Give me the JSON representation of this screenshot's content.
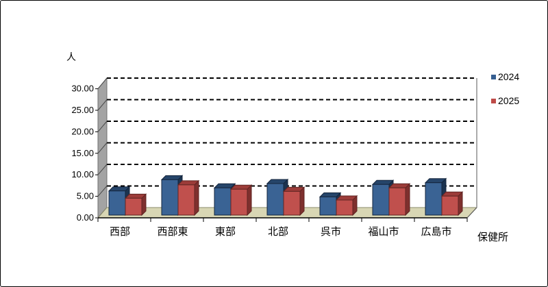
{
  "chart_data": {
    "type": "bar",
    "style": "3d-clustered-column",
    "title": "",
    "ylabel": "人",
    "xlabel": "保健所",
    "categories": [
      "西部",
      "西部東",
      "東部",
      "北部",
      "呉市",
      "福山市",
      "広島市"
    ],
    "series": [
      {
        "name": "2024",
        "values": [
          5.6,
          8.2,
          6.3,
          7.3,
          4.2,
          7.1,
          7.5
        ]
      },
      {
        "name": "2025",
        "values": [
          3.9,
          7.0,
          6.0,
          5.5,
          3.5,
          6.3,
          4.4
        ]
      }
    ],
    "ylim": [
      0,
      30
    ],
    "ytick_step": 5,
    "ytick_labels": [
      "0.00",
      "5.00",
      "10.00",
      "15.00",
      "20.00",
      "25.00",
      "30.00"
    ],
    "grid": "horizontal-dashed-black",
    "legend_position": "right-top"
  },
  "colors": {
    "series": [
      {
        "front": "#3A6394",
        "top": "#26456A",
        "side": "#1C3450",
        "outline": "#14253C",
        "legend": "#365F91"
      },
      {
        "front": "#C0504D",
        "top": "#9C3C39",
        "side": "#7E302E",
        "outline": "#5F2422",
        "legend": "#BE4B48"
      }
    ],
    "wall": "#A3A3A3",
    "wall_outline": "#6F6F6F",
    "floor": "#D8D6B4",
    "floor_outline": "#8C8C6E",
    "gridline": "#000000",
    "axis": "#000000",
    "text": "#000000",
    "background": "#FFFFFF",
    "border": "#000000"
  }
}
